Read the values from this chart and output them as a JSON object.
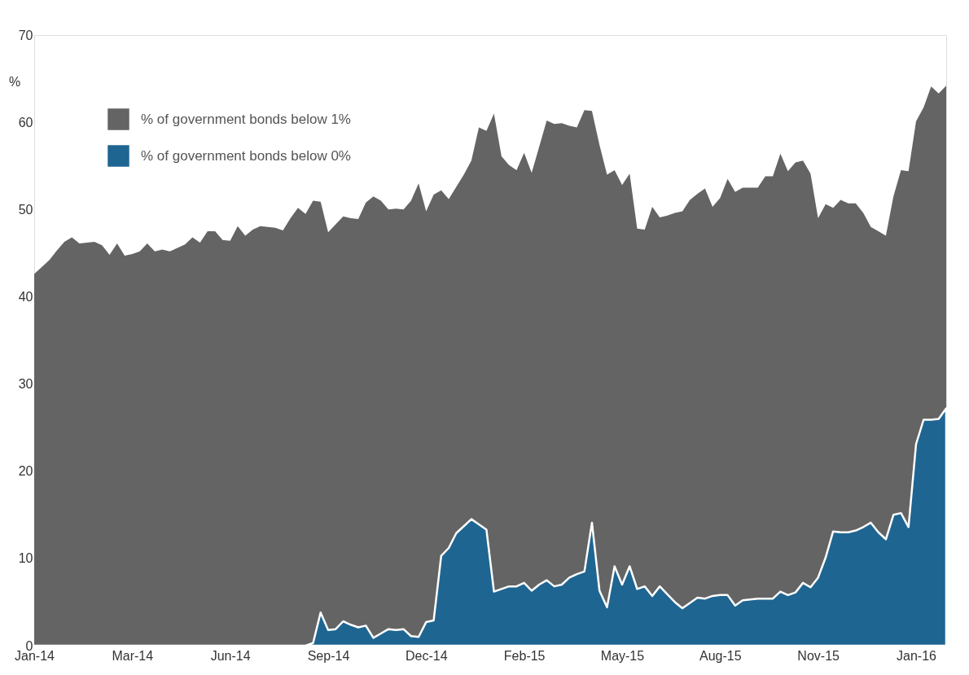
{
  "chart_data": {
    "type": "area",
    "ylabel": "%",
    "categories": [
      "Jan-14",
      null,
      null,
      null,
      null,
      null,
      null,
      null,
      null,
      null,
      null,
      null,
      null,
      "Mar-14",
      null,
      null,
      null,
      null,
      null,
      null,
      null,
      null,
      null,
      null,
      null,
      null,
      "Jun-14",
      null,
      null,
      null,
      null,
      null,
      null,
      null,
      null,
      null,
      null,
      null,
      null,
      "Sep-14",
      null,
      null,
      null,
      null,
      null,
      null,
      null,
      null,
      null,
      null,
      null,
      null,
      "Dec-14",
      null,
      null,
      null,
      null,
      null,
      null,
      null,
      null,
      null,
      null,
      null,
      null,
      "Feb-15",
      null,
      null,
      null,
      null,
      null,
      null,
      null,
      null,
      null,
      null,
      null,
      null,
      "May-15",
      null,
      null,
      null,
      null,
      null,
      null,
      null,
      null,
      null,
      null,
      null,
      null,
      "Aug-15",
      null,
      null,
      null,
      null,
      null,
      null,
      null,
      null,
      null,
      null,
      null,
      null,
      "Nov-15",
      null,
      null,
      null,
      null,
      null,
      null,
      null,
      null,
      null,
      null,
      null,
      null,
      "Jan-16",
      null,
      null,
      null,
      null
    ],
    "ylim": [
      0,
      70
    ],
    "yticks": [
      0,
      10,
      20,
      30,
      40,
      50,
      60,
      70
    ],
    "grid": false,
    "legend": "top left",
    "series": [
      {
        "name": "% of government bonds below 1%",
        "color": "#646464",
        "values": [
          42.6,
          43.4,
          44.2,
          45.3,
          46.3,
          46.8,
          46.1,
          46.2,
          46.3,
          45.9,
          44.8,
          46.1,
          44.7,
          44.9,
          45.2,
          46.1,
          45.2,
          45.4,
          45.2,
          45.6,
          46.0,
          46.8,
          46.2,
          47.5,
          47.5,
          46.5,
          46.4,
          48.1,
          47.0,
          47.7,
          48.1,
          48.0,
          47.9,
          47.6,
          49.0,
          50.2,
          49.5,
          51.0,
          50.9,
          47.4,
          48.3,
          49.2,
          49.0,
          48.9,
          50.8,
          51.5,
          51.0,
          50.0,
          50.1,
          50.0,
          51.0,
          53.0,
          49.8,
          51.7,
          52.2,
          51.2,
          52.6,
          54.0,
          55.6,
          59.4,
          59.0,
          61.0,
          56.1,
          55.1,
          54.5,
          56.5,
          54.2,
          57.2,
          60.2,
          59.8,
          59.9,
          59.6,
          59.4,
          61.4,
          61.3,
          57.4,
          54.0,
          54.5,
          52.8,
          54.1,
          47.8,
          47.7,
          50.3,
          49.1,
          49.3,
          49.6,
          49.8,
          51.1,
          51.8,
          52.4,
          50.3,
          51.3,
          53.5,
          52.0,
          52.5,
          52.5,
          52.5,
          53.8,
          53.8,
          56.4,
          54.4,
          55.4,
          55.6,
          54.1,
          49.0,
          50.6,
          50.2,
          51.1,
          50.7,
          50.7,
          49.6,
          48.0,
          47.5,
          47.0,
          51.5,
          54.5,
          54.4,
          60.1,
          61.7,
          64.1,
          63.3,
          64.2
        ]
      },
      {
        "name": "% of government bonds below 0%",
        "color": "#1f6591",
        "values": [
          0,
          0,
          0,
          0,
          0,
          0,
          0,
          0,
          0,
          0,
          0,
          0,
          0,
          0,
          0,
          0,
          0,
          0,
          0,
          0,
          0,
          0,
          0,
          0,
          0,
          0,
          0,
          0,
          0,
          0,
          0,
          0,
          0,
          0,
          0,
          0,
          0,
          0.3,
          3.8,
          1.8,
          1.9,
          2.8,
          2.4,
          2.1,
          2.3,
          0.9,
          1.4,
          1.9,
          1.8,
          1.9,
          1.1,
          1.0,
          2.7,
          2.9,
          10.3,
          11.2,
          12.9,
          13.7,
          14.5,
          13.9,
          13.3,
          6.2,
          6.5,
          6.8,
          6.8,
          7.2,
          6.3,
          7.0,
          7.5,
          6.8,
          7.0,
          7.8,
          8.2,
          8.5,
          14.1,
          6.3,
          4.4,
          9.1,
          7.0,
          9.1,
          6.5,
          6.8,
          5.7,
          6.8,
          5.9,
          5.0,
          4.3,
          4.9,
          5.5,
          5.4,
          5.7,
          5.8,
          5.8,
          4.6,
          5.2,
          5.3,
          5.4,
          5.4,
          5.4,
          6.2,
          5.8,
          6.1,
          7.2,
          6.7,
          7.8,
          10.1,
          13.1,
          13.0,
          13.0,
          13.2,
          13.6,
          14.1,
          13.0,
          12.2,
          15.0,
          15.2,
          13.6,
          23.1,
          25.9,
          25.9,
          26.0,
          27.2
        ]
      }
    ]
  }
}
